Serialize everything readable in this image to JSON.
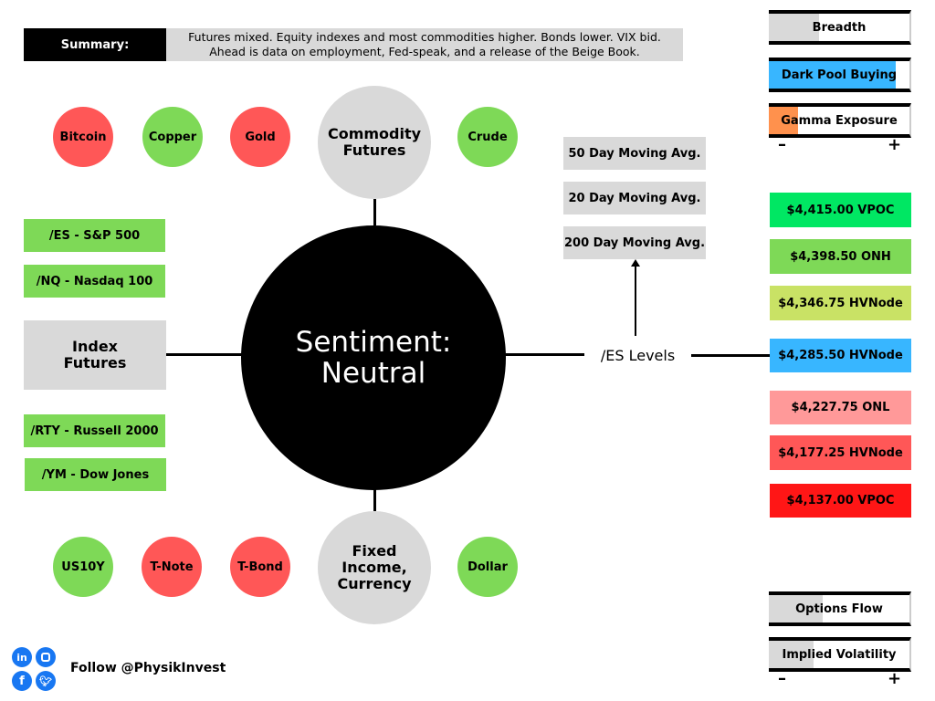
{
  "summary": {
    "label": "Summary:",
    "line1": "Futures mixed. Equity indexes and most commodities higher. Bonds lower. VIX bid.",
    "line2": "Ahead is data on employment, Fed-speak, and a release of the Beige Book."
  },
  "center": {
    "line1": "Sentiment:",
    "line2": "Neutral"
  },
  "commodity": {
    "hub_line1": "Commodity",
    "hub_line2": "Futures",
    "items": [
      {
        "label": "Bitcoin",
        "status": "down"
      },
      {
        "label": "Copper",
        "status": "up"
      },
      {
        "label": "Gold",
        "status": "down"
      },
      {
        "label": "Crude",
        "status": "up"
      }
    ]
  },
  "fixed_income": {
    "hub_line1": "Fixed",
    "hub_line2": "Income,",
    "hub_line3": "Currency",
    "items": [
      {
        "label": "US10Y",
        "status": "up"
      },
      {
        "label": "T-Note",
        "status": "down"
      },
      {
        "label": "T-Bond",
        "status": "down"
      },
      {
        "label": "Dollar",
        "status": "up"
      }
    ]
  },
  "index": {
    "hub_line1": "Index",
    "hub_line2": "Futures",
    "items": [
      {
        "label": "/ES - S&P 500"
      },
      {
        "label": "/NQ - Nasdaq 100"
      },
      {
        "label": "/RTY - Russell 2000"
      },
      {
        "label": "/YM - Dow Jones"
      }
    ]
  },
  "es_levels": {
    "label": "/ES Levels",
    "moving_averages": [
      "50 Day Moving Avg.",
      "20 Day Moving Avg.",
      "200 Day Moving Avg."
    ],
    "levels": [
      {
        "label": "$4,415.00 VPOC",
        "color": "#00e763"
      },
      {
        "label": "$4,398.50 ONH",
        "color": "#7ed957"
      },
      {
        "label": "$4,346.75 HVNode",
        "color": "#c9e265"
      },
      {
        "label": "$4,285.50 HVNode",
        "color": "#38b6ff"
      },
      {
        "label": "$4,227.75 ONL",
        "color": "#ff9999"
      },
      {
        "label": "$4,177.25 HVNode",
        "color": "#ff5757"
      },
      {
        "label": "$4,137.00 VPOC",
        "color": "#ff1616"
      }
    ]
  },
  "gauges_top": [
    {
      "label": "Breadth",
      "level": 0.36,
      "color": "#d9d9d9"
    },
    {
      "label": "Dark Pool Buying",
      "level": 0.9,
      "color": "#38b6ff"
    },
    {
      "label": "Gamma Exposure",
      "level": 0.21,
      "color": "#ff914d"
    }
  ],
  "gauges_bottom": [
    {
      "label": "Options Flow",
      "level": 0.38,
      "color": "#d9d9d9"
    },
    {
      "label": "Implied Volatility",
      "level": 0.32,
      "color": "#d9d9d9"
    }
  ],
  "scale": {
    "minus": "–",
    "plus": "+"
  },
  "colors": {
    "up": "#7ed957",
    "down": "#ff5757",
    "neutral": "#d9d9d9"
  },
  "footer": {
    "follow": "Follow @PhysikInvest",
    "icons": [
      "linkedin-icon",
      "instagram-icon",
      "facebook-icon",
      "twitter-icon"
    ]
  }
}
